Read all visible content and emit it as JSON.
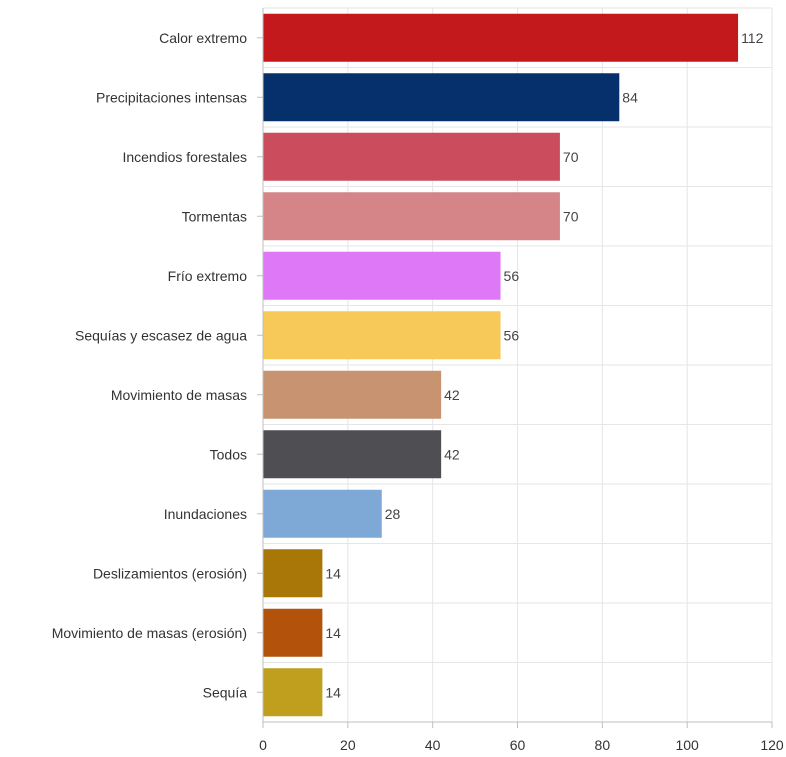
{
  "chart_data": {
    "type": "bar",
    "orientation": "horizontal",
    "title": "",
    "xlabel": "",
    "ylabel": "",
    "categories": [
      "Calor extremo",
      "Precipitaciones intensas",
      "Incendios forestales",
      "Tormentas",
      "Frío extremo",
      "Sequías y escasez de agua",
      "Movimiento de masas",
      "Todos",
      "Inundaciones",
      "Deslizamientos (erosión)",
      "Movimiento de masas (erosión)",
      "Sequía"
    ],
    "values": [
      112,
      84,
      70,
      70,
      56,
      56,
      42,
      42,
      28,
      14,
      14,
      14
    ],
    "colors": [
      "#c3191d",
      "#05306b",
      "#cb4c5d",
      "#d58487",
      "#de78f6",
      "#f6c958",
      "#c89370",
      "#4f4e53",
      "#7ea9d6",
      "#a97608",
      "#b2520b",
      "#c09f1e"
    ],
    "xlim": [
      0,
      120
    ],
    "xticks": [
      0,
      20,
      40,
      60,
      80,
      100,
      120
    ],
    "grid": true,
    "legend": "none"
  }
}
